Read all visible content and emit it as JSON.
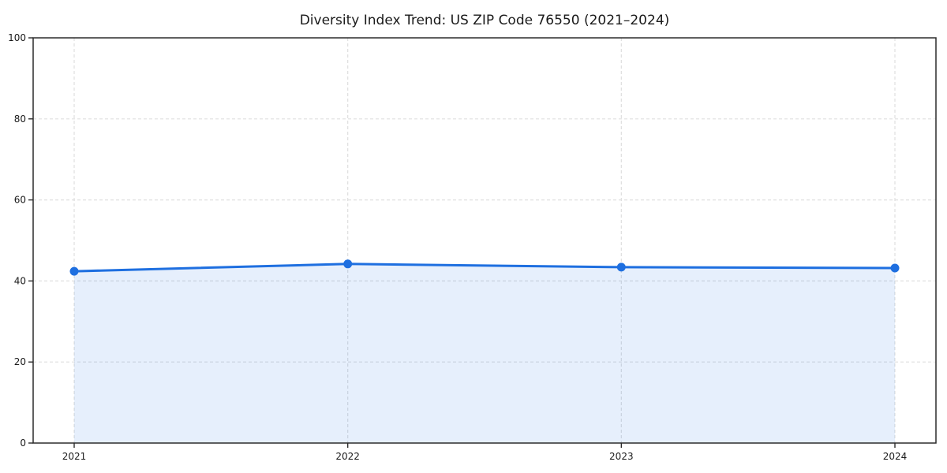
{
  "chart_data": {
    "type": "area",
    "title": "Diversity Index Trend: US ZIP Code 76550 (2021–2024)",
    "xlabel": "",
    "ylabel": "",
    "x": [
      2021,
      2022,
      2023,
      2024
    ],
    "categories": [
      "2021",
      "2022",
      "2023",
      "2024"
    ],
    "series": [
      {
        "name": "Diversity Index",
        "values": [
          42.4,
          44.2,
          43.4,
          43.2
        ]
      }
    ],
    "xlim": [
      2020.85,
      2024.15
    ],
    "ylim": [
      0,
      100
    ],
    "xticks": [
      2021,
      2022,
      2023,
      2024
    ],
    "yticks": [
      0,
      20,
      40,
      60,
      80,
      100
    ],
    "grid": "dashed",
    "legend_position": "none",
    "marker": "circle",
    "colors": {
      "line": "#1e6fe0",
      "marker": "#1e6fe0",
      "fill": "rgba(30,111,224,0.11)",
      "grid": "#dfdfdf",
      "axis": "#2b2b2b",
      "tick_text": "#1a1a1a",
      "title_text": "#1a1a1a",
      "background": "#ffffff"
    }
  }
}
